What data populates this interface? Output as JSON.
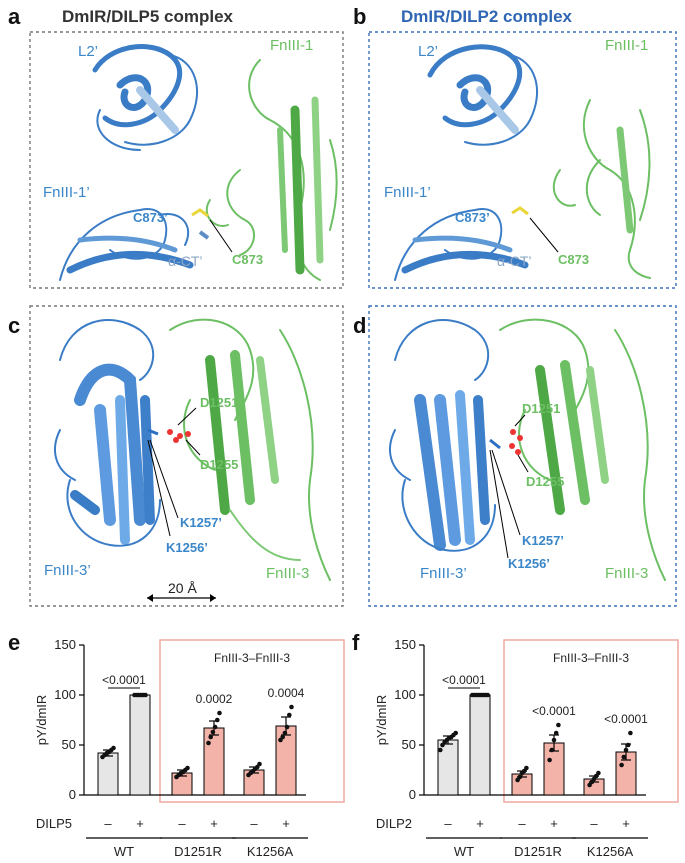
{
  "panels": {
    "a": {
      "letter": "a",
      "title": "DmIR/DILP5 complex",
      "labels": {
        "l2": "L2’",
        "fn_green": "FnIII-1",
        "fn_blue": "FnIII-1’",
        "c_blue": "C873’",
        "c_green": "C873",
        "act": "α-CT’"
      }
    },
    "b": {
      "letter": "b",
      "title": "DmIR/DILP2 complex",
      "labels": {
        "l2": "L2’",
        "fn_green": "FnIII-1",
        "fn_blue": "FnIII-1’",
        "c_blue": "C873’",
        "c_green": "C873",
        "act": "α-CT’"
      }
    },
    "c": {
      "letter": "c",
      "labels": {
        "d1251": "D1251",
        "d1255": "D1255",
        "k1257": "K1257’",
        "k1256": "K1256’",
        "fn_blue": "FnIII-3’",
        "fn_green": "FnIII-3",
        "scale": "20 Å"
      }
    },
    "d": {
      "letter": "d",
      "labels": {
        "d1251": "D1251",
        "d1255": "D1255",
        "k1257": "K1257’",
        "k1256": "K1256’",
        "fn_blue": "FnIII-3’",
        "fn_green": "FnIII-3"
      }
    }
  },
  "colors": {
    "blue": "#3a86c8",
    "green": "#6cbf63",
    "title_a": "#333333",
    "title_b": "#2f66b3",
    "bar_grey": "#e6e6e6",
    "bar_pink": "#f4b3a9",
    "box_pink": "#f1a9a0"
  },
  "chart_data": [
    {
      "letter": "e",
      "type": "bar",
      "ylabel": "pY/dmIR",
      "ylim": [
        0,
        150
      ],
      "yticks": [
        "0",
        "50",
        "100",
        "150"
      ],
      "ligand": "DILP5",
      "box_label": "FnIII-3–FnIII-3",
      "conditions": [
        "–",
        "+",
        "–",
        "+",
        "–",
        "+"
      ],
      "groups": [
        "WT",
        "D1251R",
        "K1256A"
      ],
      "values": [
        42,
        100,
        22,
        67,
        25,
        69
      ],
      "errors": [
        3,
        0,
        3,
        7,
        3,
        9
      ],
      "points": [
        [
          38,
          40,
          42,
          43,
          45,
          47
        ],
        [
          100,
          100,
          100,
          100,
          100,
          100
        ],
        [
          18,
          20,
          22,
          23,
          25,
          27
        ],
        [
          52,
          58,
          63,
          68,
          75,
          82
        ],
        [
          20,
          22,
          24,
          26,
          28,
          31
        ],
        [
          55,
          58,
          62,
          68,
          80,
          88
        ]
      ],
      "pvalues": [
        {
          "label": "<0.0001",
          "bar": 1,
          "bracket": true
        },
        {
          "label": "0.0002",
          "bar": 3
        },
        {
          "label": "0.0004",
          "bar": 5
        }
      ]
    },
    {
      "letter": "f",
      "type": "bar",
      "ylabel": "pY/dmIR",
      "ylim": [
        0,
        150
      ],
      "yticks": [
        "0",
        "50",
        "100",
        "150"
      ],
      "ligand": "DILP2",
      "box_label": "FnIII-3–FnIII-3",
      "conditions": [
        "–",
        "+",
        "–",
        "+",
        "–",
        "+"
      ],
      "groups": [
        "WT",
        "D1251R",
        "K1256A"
      ],
      "values": [
        55,
        100,
        21,
        52,
        16,
        43
      ],
      "errors": [
        4,
        0,
        3,
        8,
        3,
        8
      ],
      "points": [
        [
          45,
          50,
          53,
          55,
          57,
          58,
          60,
          62
        ],
        [
          100,
          100,
          100,
          100,
          100,
          100,
          100,
          100
        ],
        [
          15,
          18,
          22,
          24,
          27
        ],
        [
          35,
          45,
          55,
          62,
          70
        ],
        [
          10,
          13,
          16,
          19,
          22
        ],
        [
          30,
          38,
          45,
          50,
          62
        ]
      ],
      "pvalues": [
        {
          "label": "<0.0001",
          "bar": 1,
          "bracket": true
        },
        {
          "label": "<0.0001",
          "bar": 3
        },
        {
          "label": "<0.0001",
          "bar": 5
        }
      ]
    }
  ]
}
